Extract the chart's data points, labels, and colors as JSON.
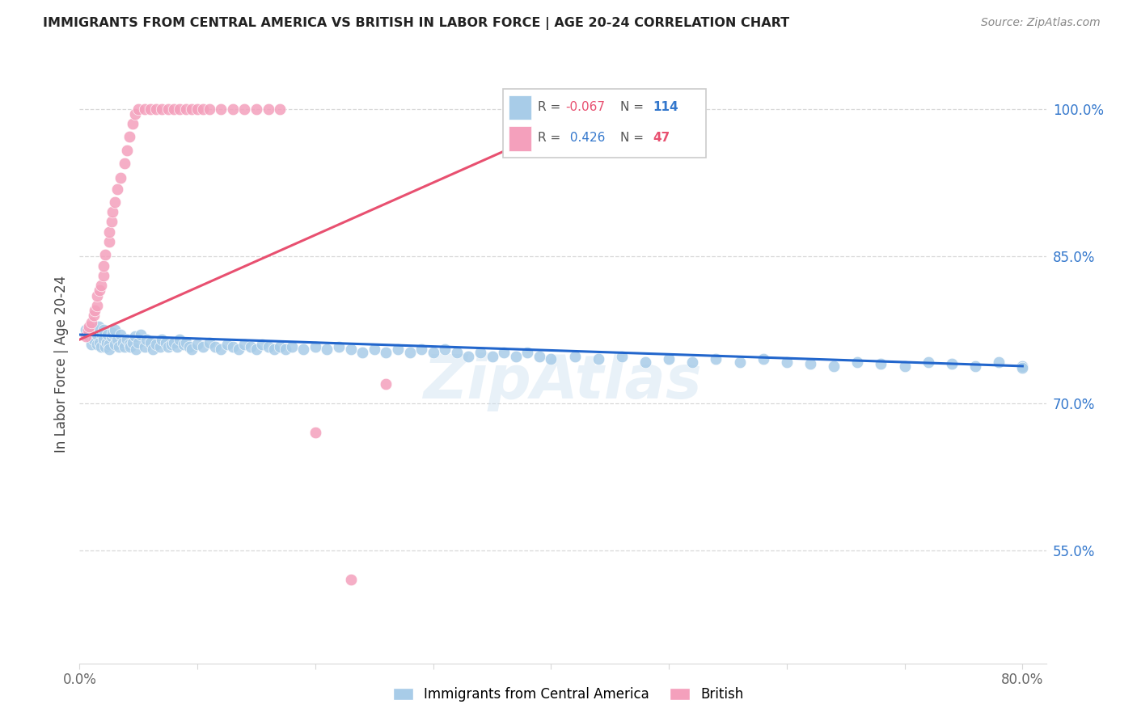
{
  "title": "IMMIGRANTS FROM CENTRAL AMERICA VS BRITISH IN LABOR FORCE | AGE 20-24 CORRELATION CHART",
  "source": "Source: ZipAtlas.com",
  "ylabel": "In Labor Force | Age 20-24",
  "xlim": [
    0.0,
    0.82
  ],
  "ylim": [
    0.435,
    1.045
  ],
  "xtick_vals": [
    0.0,
    0.1,
    0.2,
    0.3,
    0.4,
    0.5,
    0.6,
    0.7,
    0.8
  ],
  "xticklabels": [
    "0.0%",
    "",
    "",
    "",
    "",
    "",
    "",
    "",
    "80.0%"
  ],
  "yticks_right": [
    0.55,
    0.7,
    0.85,
    1.0
  ],
  "ytick_right_labels": [
    "55.0%",
    "70.0%",
    "85.0%",
    "100.0%"
  ],
  "blue_color": "#a8cce8",
  "pink_color": "#f4a0bc",
  "blue_line_color": "#2266cc",
  "pink_line_color": "#e85070",
  "blue_R": "-0.067",
  "blue_N": "114",
  "pink_R": "0.426",
  "pink_N": "47",
  "watermark": "ZipAtlas",
  "grid_color": "#d8d8d8",
  "label_color": "#444444",
  "right_axis_color": "#3377cc",
  "blue_x": [
    0.005,
    0.007,
    0.008,
    0.01,
    0.01,
    0.012,
    0.013,
    0.015,
    0.015,
    0.016,
    0.017,
    0.018,
    0.019,
    0.02,
    0.02,
    0.022,
    0.023,
    0.024,
    0.025,
    0.025,
    0.027,
    0.028,
    0.03,
    0.03,
    0.032,
    0.033,
    0.035,
    0.037,
    0.038,
    0.04,
    0.042,
    0.043,
    0.045,
    0.047,
    0.048,
    0.05,
    0.052,
    0.055,
    0.057,
    0.06,
    0.062,
    0.065,
    0.068,
    0.07,
    0.073,
    0.075,
    0.078,
    0.08,
    0.083,
    0.085,
    0.088,
    0.09,
    0.093,
    0.095,
    0.1,
    0.105,
    0.11,
    0.115,
    0.12,
    0.125,
    0.13,
    0.135,
    0.14,
    0.145,
    0.15,
    0.155,
    0.16,
    0.165,
    0.17,
    0.175,
    0.18,
    0.19,
    0.2,
    0.21,
    0.22,
    0.23,
    0.24,
    0.25,
    0.26,
    0.27,
    0.28,
    0.29,
    0.3,
    0.31,
    0.32,
    0.33,
    0.34,
    0.35,
    0.36,
    0.37,
    0.38,
    0.39,
    0.4,
    0.42,
    0.44,
    0.46,
    0.48,
    0.5,
    0.52,
    0.54,
    0.56,
    0.58,
    0.6,
    0.62,
    0.64,
    0.66,
    0.68,
    0.7,
    0.72,
    0.74,
    0.76,
    0.78,
    0.8,
    0.8
  ],
  "blue_y": [
    0.775,
    0.77,
    0.768,
    0.772,
    0.76,
    0.765,
    0.775,
    0.76,
    0.77,
    0.778,
    0.762,
    0.758,
    0.77,
    0.765,
    0.775,
    0.758,
    0.762,
    0.77,
    0.76,
    0.755,
    0.768,
    0.772,
    0.76,
    0.775,
    0.765,
    0.758,
    0.77,
    0.762,
    0.758,
    0.765,
    0.76,
    0.758,
    0.762,
    0.768,
    0.755,
    0.762,
    0.77,
    0.758,
    0.765,
    0.762,
    0.755,
    0.76,
    0.758,
    0.765,
    0.762,
    0.758,
    0.76,
    0.762,
    0.758,
    0.765,
    0.76,
    0.762,
    0.758,
    0.755,
    0.76,
    0.758,
    0.762,
    0.758,
    0.755,
    0.76,
    0.758,
    0.755,
    0.76,
    0.758,
    0.755,
    0.76,
    0.758,
    0.755,
    0.758,
    0.755,
    0.758,
    0.755,
    0.758,
    0.755,
    0.758,
    0.755,
    0.752,
    0.755,
    0.752,
    0.755,
    0.752,
    0.755,
    0.752,
    0.755,
    0.752,
    0.748,
    0.752,
    0.748,
    0.752,
    0.748,
    0.752,
    0.748,
    0.745,
    0.748,
    0.745,
    0.748,
    0.742,
    0.745,
    0.742,
    0.745,
    0.742,
    0.745,
    0.742,
    0.74,
    0.738,
    0.742,
    0.74,
    0.738,
    0.742,
    0.74,
    0.738,
    0.742,
    0.738,
    0.736
  ],
  "pink_x": [
    0.005,
    0.007,
    0.008,
    0.01,
    0.012,
    0.013,
    0.015,
    0.015,
    0.017,
    0.018,
    0.02,
    0.02,
    0.022,
    0.025,
    0.025,
    0.027,
    0.028,
    0.03,
    0.032,
    0.035,
    0.038,
    0.04,
    0.042,
    0.045,
    0.047,
    0.05,
    0.055,
    0.06,
    0.065,
    0.07,
    0.075,
    0.08,
    0.085,
    0.09,
    0.095,
    0.1,
    0.105,
    0.11,
    0.12,
    0.13,
    0.14,
    0.15,
    0.16,
    0.17,
    0.2,
    0.23,
    0.26
  ],
  "pink_y": [
    0.768,
    0.775,
    0.778,
    0.782,
    0.79,
    0.795,
    0.8,
    0.81,
    0.815,
    0.82,
    0.83,
    0.84,
    0.852,
    0.865,
    0.875,
    0.885,
    0.895,
    0.905,
    0.918,
    0.93,
    0.945,
    0.958,
    0.972,
    0.985,
    0.995,
    1.0,
    1.0,
    1.0,
    1.0,
    1.0,
    1.0,
    1.0,
    1.0,
    1.0,
    1.0,
    1.0,
    1.0,
    1.0,
    1.0,
    1.0,
    1.0,
    1.0,
    1.0,
    1.0,
    0.67,
    0.52,
    0.72
  ],
  "blue_trend": [
    0.0,
    0.8
  ],
  "blue_trend_y": [
    0.77,
    0.738
  ],
  "pink_trend": [
    0.0,
    0.45
  ],
  "pink_trend_y": [
    0.765,
    1.005
  ]
}
